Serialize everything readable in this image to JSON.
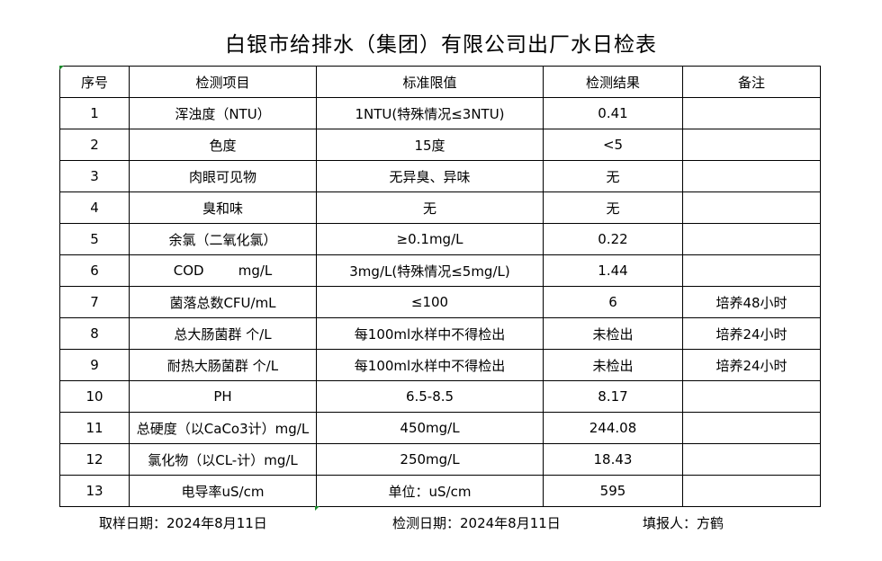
{
  "title": "白银市给排水（集团）有限公司出厂水日检表",
  "headers": [
    "序号",
    "检测项目",
    "标准限值",
    "检测结果",
    "备注"
  ],
  "rows": [
    [
      "1",
      "浑浊度（NTU）",
      "1NTU(特殊情况≤3NTU)",
      "0.41",
      ""
    ],
    [
      "2",
      "色度",
      "15度",
      "<5",
      ""
    ],
    [
      "3",
      "肉眼可见物",
      "无异臭、异味",
      "无",
      ""
    ],
    [
      "4",
      "臭和味",
      "无",
      "无",
      ""
    ],
    [
      "5",
      "余氯（二氧化氯）",
      "≥0.1mg/L",
      "0.22",
      ""
    ],
    [
      "6",
      "COD        mg/L",
      "3mg/L(特殊情况≤5mg/L)",
      "1.44",
      ""
    ],
    [
      "7",
      "菌落总数CFU/mL",
      "≤100",
      "6",
      "培养48小时"
    ],
    [
      "8",
      "总大肠菌群 个/L",
      "每100ml水样中不得检出",
      "未检出",
      "培养24小时"
    ],
    [
      "9",
      "耐热大肠菌群 个/L",
      "每100ml水样中不得检出",
      "未检出",
      "培养24小时"
    ],
    [
      "10",
      "PH",
      "6.5-8.5",
      "8.17",
      ""
    ],
    [
      "11",
      "总硬度（以CaCo3计）mg/L",
      "450mg/L",
      "244.08",
      ""
    ],
    [
      "12",
      "氯化物（以CL-计）mg/L",
      "250mg/L",
      "18.43",
      ""
    ],
    [
      "13",
      "电导率uS/cm",
      "单位：uS/cm",
      "595",
      ""
    ]
  ],
  "footer": {
    "sample_date": "取样日期：2024年8月11日",
    "test_date": "检测日期：2024年8月11日",
    "reporter": "填报人：方鹤"
  }
}
